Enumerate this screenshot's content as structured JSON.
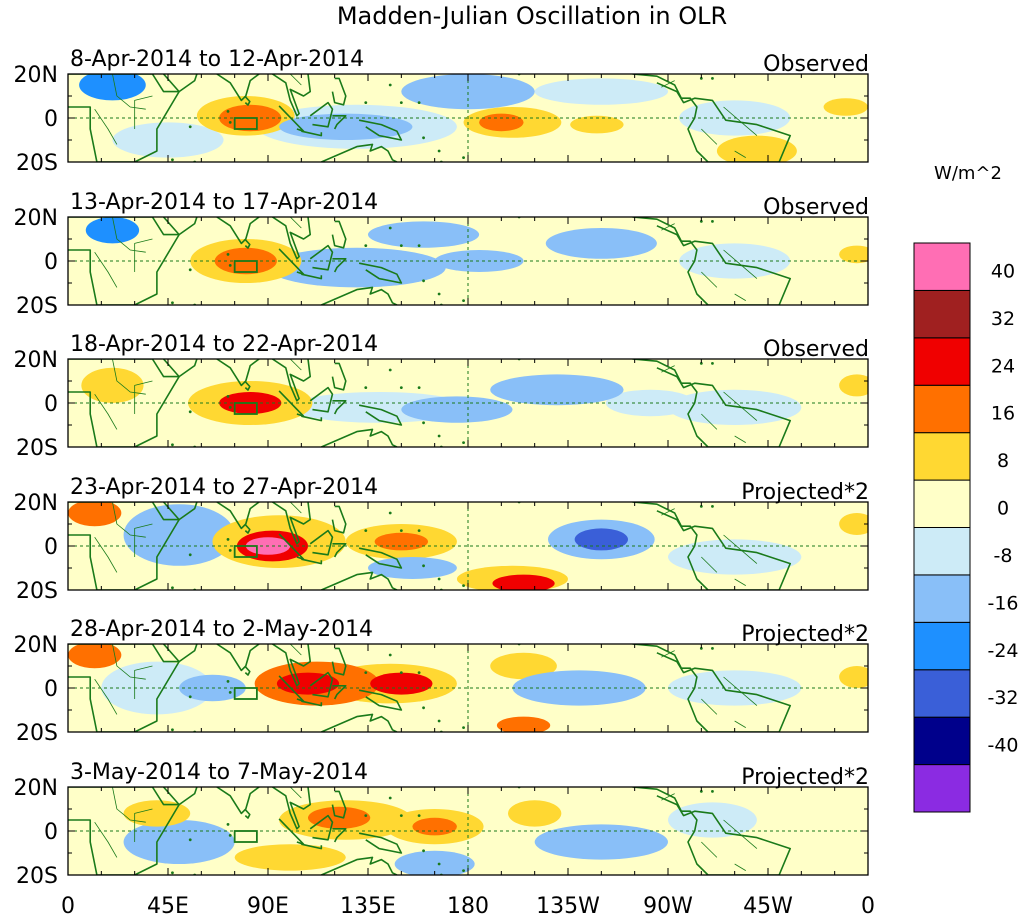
{
  "chart_data": {
    "type": "heatmap",
    "title": "Madden-Julian Oscillation in OLR",
    "units": "W/m^2",
    "colorbar": {
      "colors": [
        "#8B2BE2",
        "#00008B",
        "#3A5FD8",
        "#1E90FF",
        "#89BFF8",
        "#CDEBF7",
        "#FFFFC8",
        "#FFD832",
        "#FF7000",
        "#F00000",
        "#A02020",
        "#FF6EB4"
      ],
      "colors_bottom_to_top": true,
      "levels": [
        "-40",
        "-32",
        "-24",
        "-16",
        "-8",
        "0",
        "8",
        "16",
        "24",
        "32",
        "40"
      ]
    },
    "xaxis": {
      "ticks": [
        "0",
        "45E",
        "90E",
        "135E",
        "180",
        "135W",
        "90W",
        "45W",
        "0"
      ],
      "range_deg": [
        0,
        360
      ]
    },
    "yaxis": {
      "ticks": [
        "20N",
        "0",
        "20S"
      ],
      "range_deg": [
        -20,
        20
      ]
    },
    "box_region": {
      "lon": [
        75,
        85
      ],
      "lat": [
        -5,
        0
      ]
    },
    "panels": [
      {
        "period": "8-Apr-2014 to 12-Apr-2014",
        "type": "Observed",
        "anomalies": [
          {
            "lon": 82,
            "lat": 0,
            "rlon": 14,
            "rlat": 6,
            "value": 20
          },
          {
            "lon": 80,
            "lat": 1,
            "rlon": 22,
            "rlat": 9,
            "value": 10
          },
          {
            "lon": 195,
            "lat": -2,
            "rlon": 10,
            "rlat": 4,
            "value": 18
          },
          {
            "lon": 200,
            "lat": -2,
            "rlon": 22,
            "rlat": 7,
            "value": 10
          },
          {
            "lon": 238,
            "lat": -3,
            "rlon": 12,
            "rlat": 4,
            "value": 10
          },
          {
            "lon": 310,
            "lat": -15,
            "rlon": 18,
            "rlat": 7,
            "value": 12
          },
          {
            "lon": 350,
            "lat": 5,
            "rlon": 10,
            "rlat": 4,
            "value": 10
          },
          {
            "lon": 125,
            "lat": -4,
            "rlon": 30,
            "rlat": 6,
            "value": -12
          },
          {
            "lon": 130,
            "lat": -4,
            "rlon": 45,
            "rlat": 10,
            "value": -6
          },
          {
            "lon": 20,
            "lat": 15,
            "rlon": 15,
            "rlat": 7,
            "value": -18
          },
          {
            "lon": 180,
            "lat": 12,
            "rlon": 30,
            "rlat": 8,
            "value": -10
          },
          {
            "lon": 240,
            "lat": 12,
            "rlon": 30,
            "rlat": 6,
            "value": -6
          },
          {
            "lon": 300,
            "lat": 0,
            "rlon": 25,
            "rlat": 8,
            "value": -6
          },
          {
            "lon": 45,
            "lat": -10,
            "rlon": 25,
            "rlat": 8,
            "value": -6
          }
        ]
      },
      {
        "period": "13-Apr-2014 to 17-Apr-2014",
        "type": "Observed",
        "anomalies": [
          {
            "lon": 80,
            "lat": 0,
            "rlon": 14,
            "rlat": 6,
            "value": 20
          },
          {
            "lon": 80,
            "lat": 0,
            "rlon": 25,
            "rlat": 10,
            "value": 10
          },
          {
            "lon": 210,
            "lat": -2,
            "rlon": 30,
            "rlat": 5,
            "value": 6
          },
          {
            "lon": 20,
            "lat": 14,
            "rlon": 12,
            "rlat": 6,
            "value": -16
          },
          {
            "lon": 130,
            "lat": -3,
            "rlon": 40,
            "rlat": 9,
            "value": -8
          },
          {
            "lon": 185,
            "lat": 0,
            "rlon": 20,
            "rlat": 5,
            "value": -12
          },
          {
            "lon": 240,
            "lat": 8,
            "rlon": 25,
            "rlat": 7,
            "value": -12
          },
          {
            "lon": 160,
            "lat": 12,
            "rlon": 25,
            "rlat": 6,
            "value": -8
          },
          {
            "lon": 300,
            "lat": 0,
            "rlon": 25,
            "rlat": 8,
            "value": -6
          },
          {
            "lon": 355,
            "lat": 3,
            "rlon": 8,
            "rlat": 4,
            "value": 10
          }
        ]
      },
      {
        "period": "18-Apr-2014 to 22-Apr-2014",
        "type": "Observed",
        "anomalies": [
          {
            "lon": 82,
            "lat": 0,
            "rlon": 14,
            "rlat": 5,
            "value": 24
          },
          {
            "lon": 82,
            "lat": 0,
            "rlon": 28,
            "rlat": 10,
            "value": 12
          },
          {
            "lon": 20,
            "lat": 8,
            "rlon": 14,
            "rlat": 8,
            "value": 10
          },
          {
            "lon": 140,
            "lat": -2,
            "rlon": 40,
            "rlat": 7,
            "value": -6
          },
          {
            "lon": 175,
            "lat": -3,
            "rlon": 25,
            "rlat": 6,
            "value": -10
          },
          {
            "lon": 220,
            "lat": 6,
            "rlon": 30,
            "rlat": 7,
            "value": -10
          },
          {
            "lon": 262,
            "lat": 0,
            "rlon": 20,
            "rlat": 6,
            "value": -6
          },
          {
            "lon": 300,
            "lat": -2,
            "rlon": 30,
            "rlat": 8,
            "value": -6
          },
          {
            "lon": 355,
            "lat": 8,
            "rlon": 8,
            "rlat": 5,
            "value": 10
          }
        ]
      },
      {
        "period": "23-Apr-2014 to 27-Apr-2014",
        "type": "Projected*2",
        "anomalies": [
          {
            "lon": 90,
            "lat": 0,
            "rlon": 10,
            "rlat": 4,
            "value": 44
          },
          {
            "lon": 92,
            "lat": 0,
            "rlon": 16,
            "rlat": 7,
            "value": 30
          },
          {
            "lon": 95,
            "lat": 2,
            "rlon": 30,
            "rlat": 12,
            "value": 14
          },
          {
            "lon": 150,
            "lat": 2,
            "rlon": 12,
            "rlat": 4,
            "value": 20
          },
          {
            "lon": 150,
            "lat": 2,
            "rlon": 25,
            "rlat": 8,
            "value": 10
          },
          {
            "lon": 12,
            "lat": 15,
            "rlon": 12,
            "rlat": 6,
            "value": 18
          },
          {
            "lon": 205,
            "lat": -17,
            "rlon": 14,
            "rlat": 4,
            "value": 24
          },
          {
            "lon": 200,
            "lat": -15,
            "rlon": 25,
            "rlat": 6,
            "value": 10
          },
          {
            "lon": 240,
            "lat": 3,
            "rlon": 12,
            "rlat": 5,
            "value": -26
          },
          {
            "lon": 240,
            "lat": 3,
            "rlon": 24,
            "rlat": 9,
            "value": -12
          },
          {
            "lon": 155,
            "lat": -10,
            "rlon": 20,
            "rlat": 5,
            "value": -14
          },
          {
            "lon": 50,
            "lat": 5,
            "rlon": 25,
            "rlat": 14,
            "value": -8
          },
          {
            "lon": 300,
            "lat": -5,
            "rlon": 30,
            "rlat": 8,
            "value": -6
          },
          {
            "lon": 355,
            "lat": 10,
            "rlon": 8,
            "rlat": 5,
            "value": 10
          }
        ]
      },
      {
        "period": "28-Apr-2014 to 2-May-2014",
        "type": "Projected*2",
        "anomalies": [
          {
            "lon": 108,
            "lat": 2,
            "rlon": 14,
            "rlat": 5,
            "value": 26
          },
          {
            "lon": 112,
            "lat": 2,
            "rlon": 28,
            "rlat": 10,
            "value": 16
          },
          {
            "lon": 150,
            "lat": 2,
            "rlon": 14,
            "rlat": 5,
            "value": 24
          },
          {
            "lon": 145,
            "lat": 2,
            "rlon": 30,
            "rlat": 9,
            "value": 12
          },
          {
            "lon": 12,
            "lat": 15,
            "rlon": 12,
            "rlat": 6,
            "value": 18
          },
          {
            "lon": 205,
            "lat": -17,
            "rlon": 12,
            "rlat": 4,
            "value": 22
          },
          {
            "lon": 205,
            "lat": 10,
            "rlon": 15,
            "rlat": 6,
            "value": 10
          },
          {
            "lon": 230,
            "lat": 0,
            "rlon": 30,
            "rlat": 8,
            "value": -10
          },
          {
            "lon": 65,
            "lat": 0,
            "rlon": 15,
            "rlat": 6,
            "value": -14
          },
          {
            "lon": 40,
            "lat": 0,
            "rlon": 25,
            "rlat": 12,
            "value": -6
          },
          {
            "lon": 300,
            "lat": 0,
            "rlon": 30,
            "rlat": 8,
            "value": -6
          },
          {
            "lon": 355,
            "lat": 5,
            "rlon": 8,
            "rlat": 5,
            "value": 10
          }
        ]
      },
      {
        "period": "3-May-2014 to 7-May-2014",
        "type": "Projected*2",
        "anomalies": [
          {
            "lon": 122,
            "lat": 6,
            "rlon": 14,
            "rlat": 5,
            "value": 22
          },
          {
            "lon": 125,
            "lat": 5,
            "rlon": 30,
            "rlat": 9,
            "value": 12
          },
          {
            "lon": 165,
            "lat": 2,
            "rlon": 10,
            "rlat": 4,
            "value": 20
          },
          {
            "lon": 165,
            "lat": 2,
            "rlon": 22,
            "rlat": 8,
            "value": 10
          },
          {
            "lon": 210,
            "lat": 8,
            "rlon": 12,
            "rlat": 6,
            "value": 12
          },
          {
            "lon": 100,
            "lat": -12,
            "rlon": 25,
            "rlat": 6,
            "value": 10
          },
          {
            "lon": 40,
            "lat": 8,
            "rlon": 15,
            "rlat": 6,
            "value": 12
          },
          {
            "lon": 50,
            "lat": -5,
            "rlon": 25,
            "rlat": 10,
            "value": -10
          },
          {
            "lon": 165,
            "lat": -15,
            "rlon": 18,
            "rlat": 6,
            "value": -14
          },
          {
            "lon": 240,
            "lat": -5,
            "rlon": 30,
            "rlat": 8,
            "value": -8
          },
          {
            "lon": 290,
            "lat": 5,
            "rlon": 20,
            "rlat": 8,
            "value": -6
          }
        ]
      }
    ]
  }
}
